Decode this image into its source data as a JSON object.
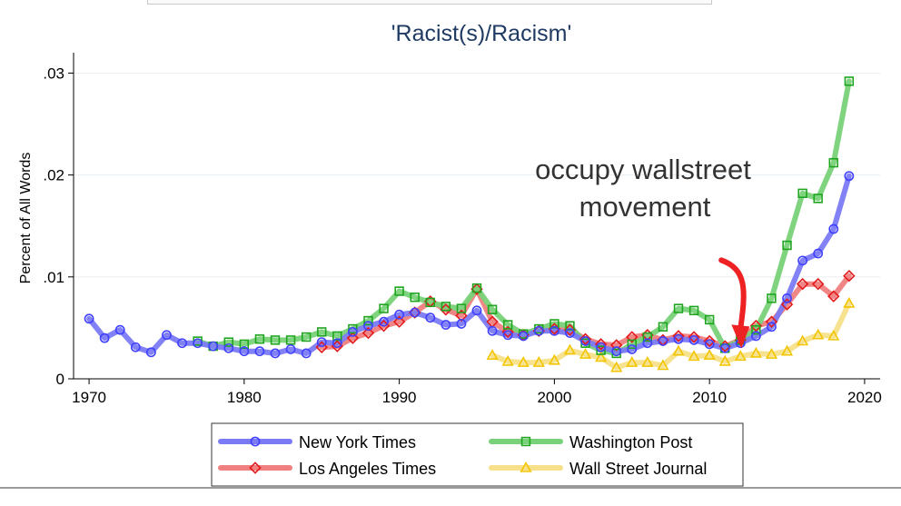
{
  "chart_data": {
    "type": "line",
    "title": "'Racist(s)/Racism'",
    "xlabel": "",
    "ylabel": "Percent of All Words",
    "xlim": [
      1969,
      2021
    ],
    "ylim": [
      0,
      0.032
    ],
    "xticks": [
      1970,
      1980,
      1990,
      2000,
      2010,
      2020
    ],
    "yticks": [
      0,
      0.01,
      0.02,
      0.03
    ],
    "ytick_labels": [
      "0",
      ".01",
      ".02",
      ".03"
    ],
    "grid": true,
    "legend_position": "bottom",
    "annotation": {
      "lines": [
        "occupy wallstreet",
        "movement"
      ],
      "arrow_from": [
        2010,
        0.012
      ],
      "arrow_to": [
        2012,
        0.003
      ]
    },
    "series": [
      {
        "name": "New York Times",
        "color": "#4040ff",
        "line_color": "#7b7bf5",
        "marker": "circle",
        "x": [
          1970,
          1971,
          1972,
          1973,
          1974,
          1975,
          1976,
          1977,
          1978,
          1979,
          1980,
          1981,
          1982,
          1983,
          1984,
          1985,
          1986,
          1987,
          1988,
          1989,
          1990,
          1991,
          1992,
          1993,
          1994,
          1995,
          1996,
          1997,
          1998,
          1999,
          2000,
          2001,
          2002,
          2003,
          2004,
          2005,
          2006,
          2007,
          2008,
          2009,
          2010,
          2011,
          2012,
          2013,
          2014,
          2015,
          2016,
          2017,
          2018,
          2019
        ],
        "values": [
          0.0059,
          0.004,
          0.0048,
          0.0031,
          0.0026,
          0.0043,
          0.0035,
          0.0035,
          0.0032,
          0.003,
          0.0027,
          0.0027,
          0.0025,
          0.0029,
          0.0025,
          0.0036,
          0.0035,
          0.0046,
          0.0052,
          0.0056,
          0.0063,
          0.0065,
          0.006,
          0.0053,
          0.0054,
          0.0067,
          0.0047,
          0.0043,
          0.0042,
          0.0047,
          0.0047,
          0.0045,
          0.0037,
          0.0031,
          0.0027,
          0.0029,
          0.0035,
          0.0037,
          0.0039,
          0.0038,
          0.0034,
          0.003,
          0.0035,
          0.0042,
          0.0051,
          0.0079,
          0.0116,
          0.0123,
          0.0147,
          0.0199
        ]
      },
      {
        "name": "Washington Post",
        "color": "#1fa51f",
        "line_color": "#79d279",
        "marker": "square",
        "x": [
          1977,
          1978,
          1979,
          1980,
          1981,
          1982,
          1983,
          1984,
          1985,
          1986,
          1987,
          1988,
          1989,
          1990,
          1991,
          1992,
          1993,
          1994,
          1995,
          1996,
          1997,
          1998,
          1999,
          2000,
          2001,
          2002,
          2003,
          2004,
          2005,
          2006,
          2007,
          2008,
          2009,
          2010,
          2011,
          2012,
          2013,
          2014,
          2015,
          2016,
          2017,
          2018,
          2019
        ],
        "values": [
          0.0037,
          0.0032,
          0.0036,
          0.0034,
          0.0039,
          0.0038,
          0.0038,
          0.0041,
          0.0046,
          0.0042,
          0.0049,
          0.0057,
          0.0069,
          0.0086,
          0.008,
          0.0075,
          0.0071,
          0.0069,
          0.0089,
          0.0068,
          0.0053,
          0.0044,
          0.0049,
          0.0054,
          0.0052,
          0.0035,
          0.0028,
          0.0025,
          0.0034,
          0.0041,
          0.0051,
          0.0069,
          0.0067,
          0.0058,
          0.003,
          0.0038,
          0.0048,
          0.0079,
          0.0131,
          0.0182,
          0.0177,
          0.0212,
          0.0292
        ]
      },
      {
        "name": "Los Angeles Times",
        "color": "#e31a1c",
        "line_color": "#f08080",
        "marker": "diamond",
        "x": [
          1985,
          1986,
          1987,
          1988,
          1989,
          1990,
          1991,
          1992,
          1993,
          1994,
          1995,
          1996,
          1997,
          1998,
          1999,
          2000,
          2001,
          2002,
          2003,
          2004,
          2005,
          2006,
          2007,
          2008,
          2009,
          2010,
          2011,
          2012,
          2013,
          2014,
          2015,
          2016,
          2017,
          2018,
          2019
        ],
        "values": [
          0.0031,
          0.0032,
          0.004,
          0.0045,
          0.0052,
          0.0056,
          0.0065,
          0.0076,
          0.0068,
          0.0062,
          0.0088,
          0.0056,
          0.0046,
          0.0043,
          0.0047,
          0.0049,
          0.0048,
          0.0039,
          0.0034,
          0.0033,
          0.0041,
          0.0043,
          0.0038,
          0.0042,
          0.0041,
          0.0037,
          0.0032,
          0.0038,
          0.0052,
          0.0056,
          0.0073,
          0.0093,
          0.0093,
          0.0081,
          0.0101
        ]
      },
      {
        "name": "Wall Street Journal",
        "color": "#f2c500",
        "line_color": "#f7e089",
        "marker": "triangle",
        "x": [
          1996,
          1997,
          1998,
          1999,
          2000,
          2001,
          2002,
          2003,
          2004,
          2005,
          2006,
          2007,
          2008,
          2009,
          2010,
          2011,
          2012,
          2013,
          2014,
          2015,
          2016,
          2017,
          2018,
          2019
        ],
        "values": [
          0.0023,
          0.0017,
          0.0016,
          0.0016,
          0.0018,
          0.0028,
          0.0024,
          0.0021,
          0.0011,
          0.0016,
          0.0016,
          0.0013,
          0.0027,
          0.0022,
          0.0023,
          0.0017,
          0.0022,
          0.0025,
          0.0024,
          0.0027,
          0.0037,
          0.0043,
          0.0042,
          0.0074
        ]
      }
    ],
    "legend_order": [
      "New York Times",
      "Washington Post",
      "Los Angeles Times",
      "Wall Street Journal"
    ]
  }
}
